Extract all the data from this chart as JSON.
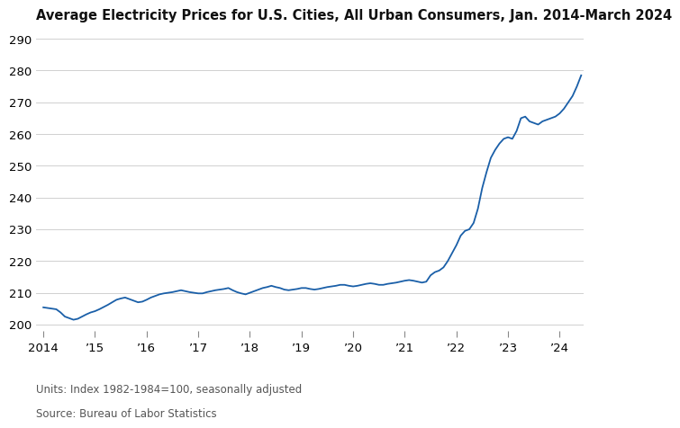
{
  "title": "Average Electricity Prices for U.S. Cities, All Urban Consumers, Jan. 2014-March 2024",
  "footnote1": "Units: Index 1982-1984=100, seasonally adjusted",
  "footnote2": "Source: Bureau of Labor Statistics",
  "line_color": "#1a5fa8",
  "background_color": "#ffffff",
  "ylim": [
    198,
    293
  ],
  "yticks": [
    200,
    210,
    220,
    230,
    240,
    250,
    260,
    270,
    280,
    290
  ],
  "xtick_labels": [
    "2014",
    "’15",
    "’16",
    "’17",
    "’18",
    "’19",
    "’20",
    "’21",
    "’22",
    "’23",
    "’24"
  ],
  "title_fontsize": 10.5,
  "tick_fontsize": 9.5,
  "footnote_fontsize": 8.5,
  "values": [
    205.4,
    205.2,
    205.0,
    204.8,
    203.8,
    202.5,
    202.0,
    201.5,
    201.8,
    202.5,
    203.2,
    203.8,
    204.2,
    204.8,
    205.5,
    206.2,
    207.0,
    207.8,
    208.2,
    208.5,
    208.0,
    207.5,
    207.0,
    207.2,
    207.8,
    208.5,
    209.0,
    209.5,
    209.8,
    210.0,
    210.2,
    210.5,
    210.8,
    210.5,
    210.2,
    210.0,
    209.8,
    209.8,
    210.2,
    210.5,
    210.8,
    211.0,
    211.2,
    211.5,
    210.8,
    210.2,
    209.8,
    209.5,
    210.0,
    210.5,
    211.0,
    211.5,
    211.8,
    212.2,
    211.8,
    211.5,
    211.0,
    210.8,
    211.0,
    211.2,
    211.5,
    211.5,
    211.2,
    211.0,
    211.2,
    211.5,
    211.8,
    212.0,
    212.2,
    212.5,
    212.5,
    212.2,
    212.0,
    212.2,
    212.5,
    212.8,
    213.0,
    212.8,
    212.5,
    212.5,
    212.8,
    213.0,
    213.2,
    213.5,
    213.8,
    214.0,
    213.8,
    213.5,
    213.2,
    213.5,
    215.5,
    216.5,
    217.0,
    218.0,
    220.0,
    222.5,
    225.0,
    228.0,
    229.5,
    230.0,
    232.0,
    236.5,
    243.0,
    248.0,
    252.5,
    255.0,
    257.0,
    258.5,
    259.0,
    258.5,
    261.0,
    265.0,
    265.5,
    264.0,
    263.5,
    263.0,
    264.0,
    264.5,
    265.0,
    265.5,
    266.5,
    268.0,
    270.0,
    272.0,
    275.0,
    278.5
  ]
}
